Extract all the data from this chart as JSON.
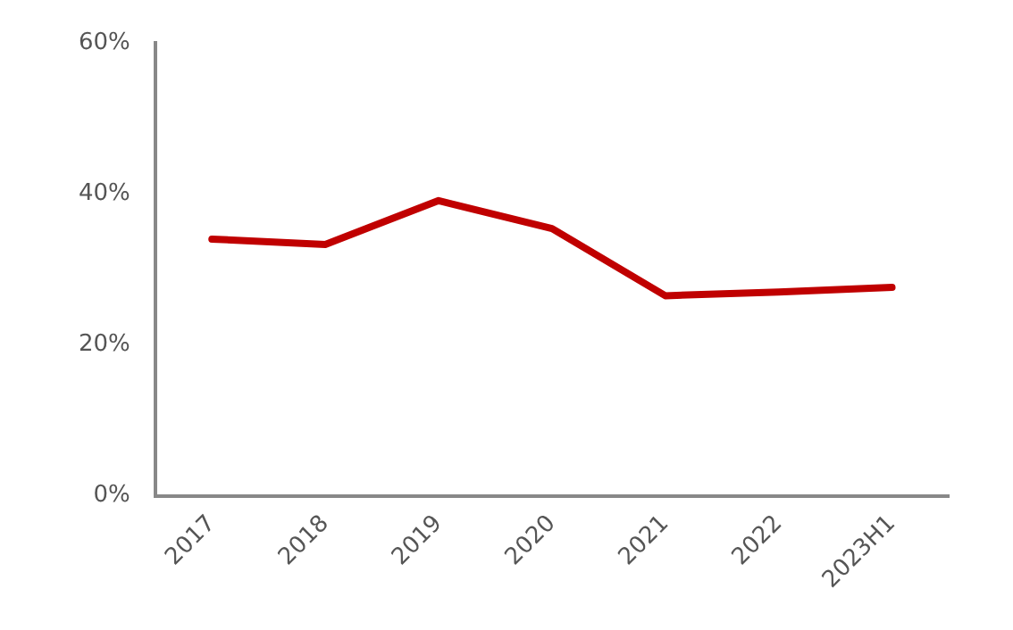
{
  "chart_data": {
    "type": "line",
    "categories": [
      "2017",
      "2018",
      "2019",
      "2020",
      "2021",
      "2022",
      "2023H1"
    ],
    "series": [
      {
        "color": "#c00000",
        "values": [
          34.0,
          33.3,
          39.1,
          35.4,
          26.5,
          27.0,
          27.6
        ]
      }
    ],
    "ylim": [
      0,
      60
    ],
    "yticks": [
      {
        "value": 0,
        "label": "0%"
      },
      {
        "value": 20,
        "label": "20%"
      },
      {
        "value": 40,
        "label": "40%"
      },
      {
        "value": 60,
        "label": "60%"
      }
    ],
    "grid": false,
    "legend": false,
    "marker": "none",
    "line_style": "solid"
  }
}
